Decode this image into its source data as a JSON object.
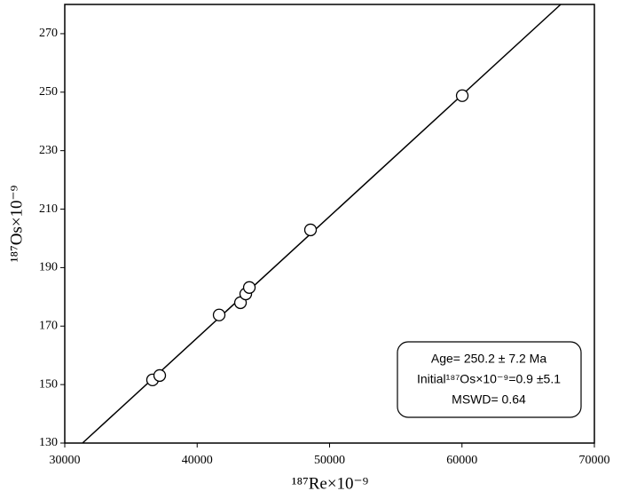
{
  "chart_data": {
    "type": "scatter",
    "x_label": "¹⁸⁷Re×10⁻⁹",
    "y_label": "¹⁸⁷Os×10⁻⁹",
    "annotations": [
      "Age= 250.2 ± 7.2 Ma",
      "Initial¹⁸⁷Os×10⁻⁹=0.9 ±5.1",
      "MSWD= 0.64"
    ],
    "x": [
      36630,
      37170,
      41660,
      43270,
      43670,
      43940,
      48560,
      60020
    ],
    "values": [
      151.6,
      153.1,
      173.8,
      178.0,
      181.0,
      183.2,
      202.9,
      248.8
    ],
    "color": "#ffffff",
    "fit_line": {
      "x": [
        31340,
        67455
      ],
      "y": [
        130,
        280
      ]
    },
    "xlim": [
      30000,
      70000
    ],
    "xticks": [
      30000,
      40000,
      50000,
      60000,
      70000
    ],
    "ylim": [
      130,
      280
    ],
    "yticks": [
      130,
      150,
      170,
      190,
      210,
      230,
      250,
      270
    ],
    "grid": false
  }
}
